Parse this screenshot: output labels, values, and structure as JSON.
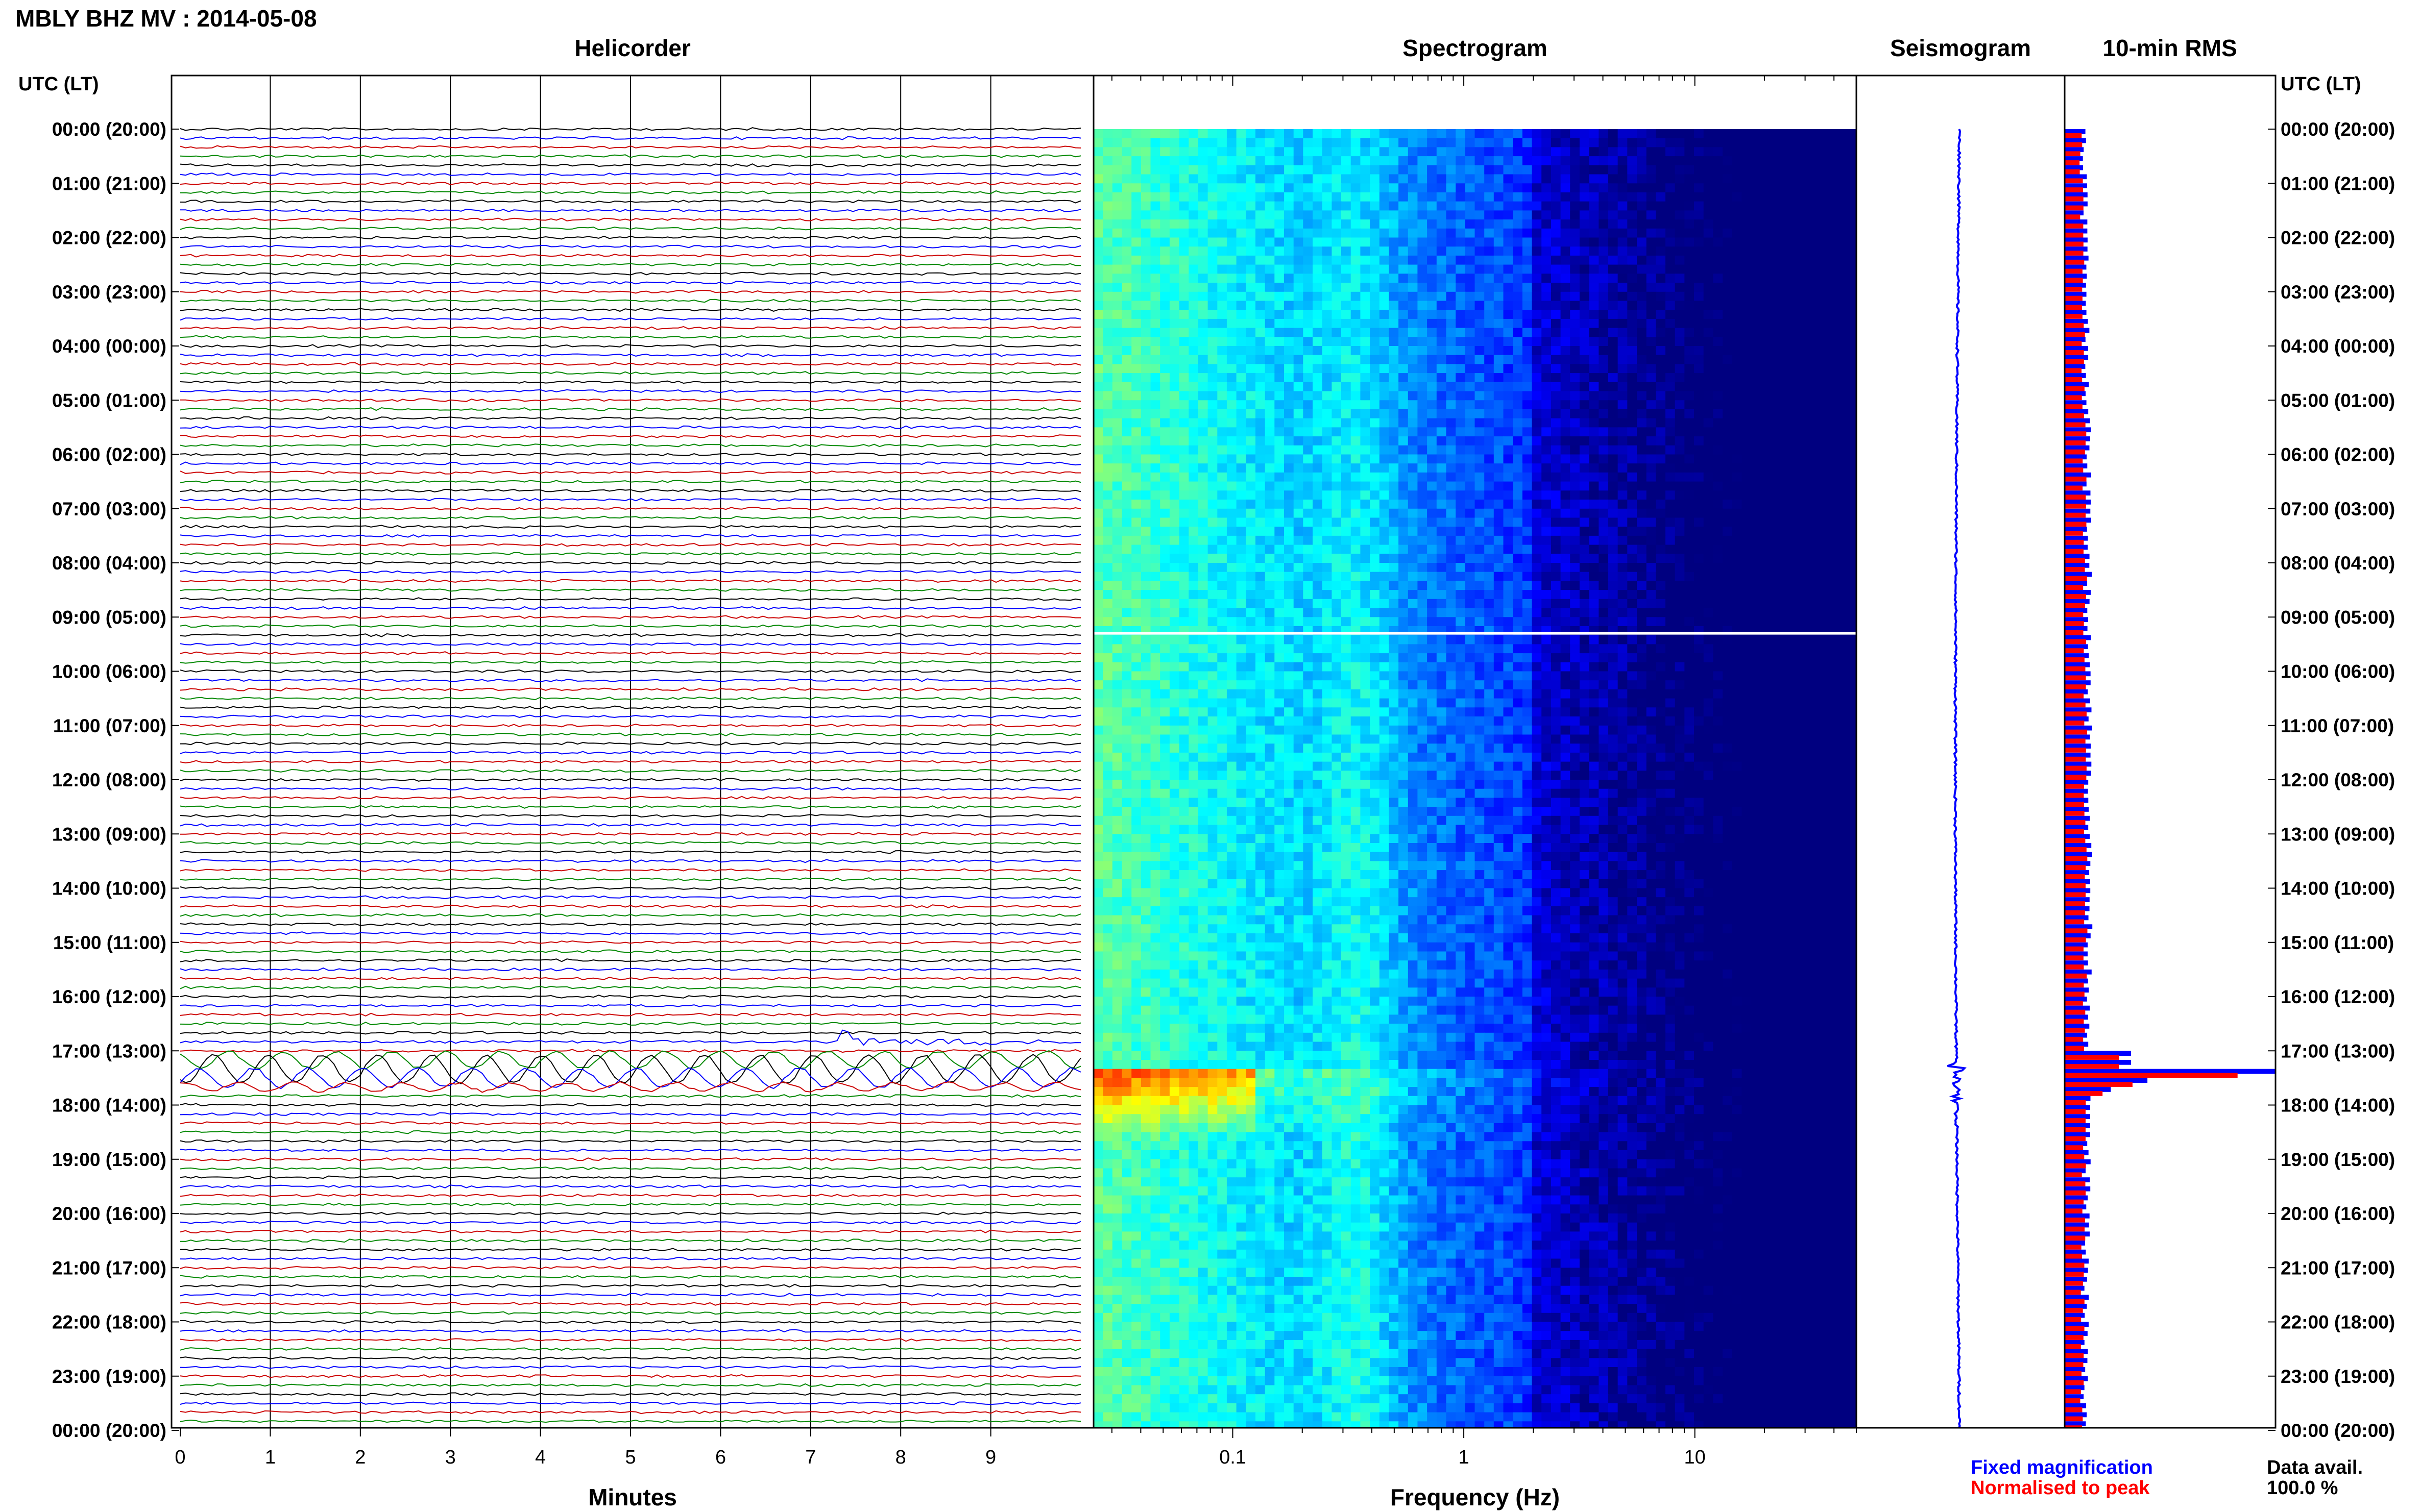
{
  "header": {
    "title": "MBLY BHZ MV : 2014-05-08"
  },
  "chart_data": [
    {
      "type": "line",
      "title": "Helicorder",
      "xlabel": "Minutes",
      "ylabel_left": "UTC (LT)",
      "ylabel_right": "UTC (LT)",
      "xlim": [
        0,
        10
      ],
      "x_ticks": [
        0,
        1,
        2,
        3,
        4,
        5,
        6,
        7,
        8,
        9
      ],
      "lines_per_hour": 6,
      "hours": 24,
      "trace_colors": [
        "#000000",
        "#0000ff",
        "#cc0000",
        "#008800"
      ],
      "event": {
        "hour": 17,
        "label": "17:00 (13:00)"
      },
      "y_tick_labels": [
        "00:00 (20:00)",
        "01:00 (21:00)",
        "02:00 (22:00)",
        "03:00 (23:00)",
        "04:00 (00:00)",
        "05:00 (01:00)",
        "06:00 (02:00)",
        "07:00 (03:00)",
        "08:00 (04:00)",
        "09:00 (05:00)",
        "10:00 (06:00)",
        "11:00 (07:00)",
        "12:00 (08:00)",
        "13:00 (09:00)",
        "14:00 (10:00)",
        "15:00 (11:00)",
        "16:00 (12:00)",
        "17:00 (13:00)",
        "18:00 (14:00)",
        "19:00 (15:00)",
        "20:00 (16:00)",
        "21:00 (17:00)",
        "22:00 (18:00)",
        "23:00 (19:00)",
        "00:00 (20:00)"
      ]
    },
    {
      "type": "heatmap",
      "title": "Spectrogram",
      "xlabel": "Frequency (Hz)",
      "x_scale": "log",
      "xlim": [
        0.025,
        50
      ],
      "x_tick_labels": [
        "0.1",
        "1",
        "10"
      ],
      "x_ticks": [
        0.1,
        1,
        10
      ],
      "colormap": "jet"
    },
    {
      "type": "line",
      "title": "Seismogram",
      "color": "#0000ff"
    },
    {
      "type": "bar",
      "title": "10-min RMS",
      "series": [
        {
          "name": "Fixed magnification",
          "color": "#0000ff"
        },
        {
          "name": "Normalised to peak",
          "color": "#ff0000"
        }
      ],
      "peak_hour": 17.25
    }
  ],
  "legend": {
    "fixed_label": "Fixed magnification",
    "normalised_label": "Normalised to peak",
    "fixed_color": "#0000ff",
    "normalised_color": "#ff0000"
  },
  "data_avail": {
    "label": "Data avail.",
    "value": "100.0 %"
  }
}
